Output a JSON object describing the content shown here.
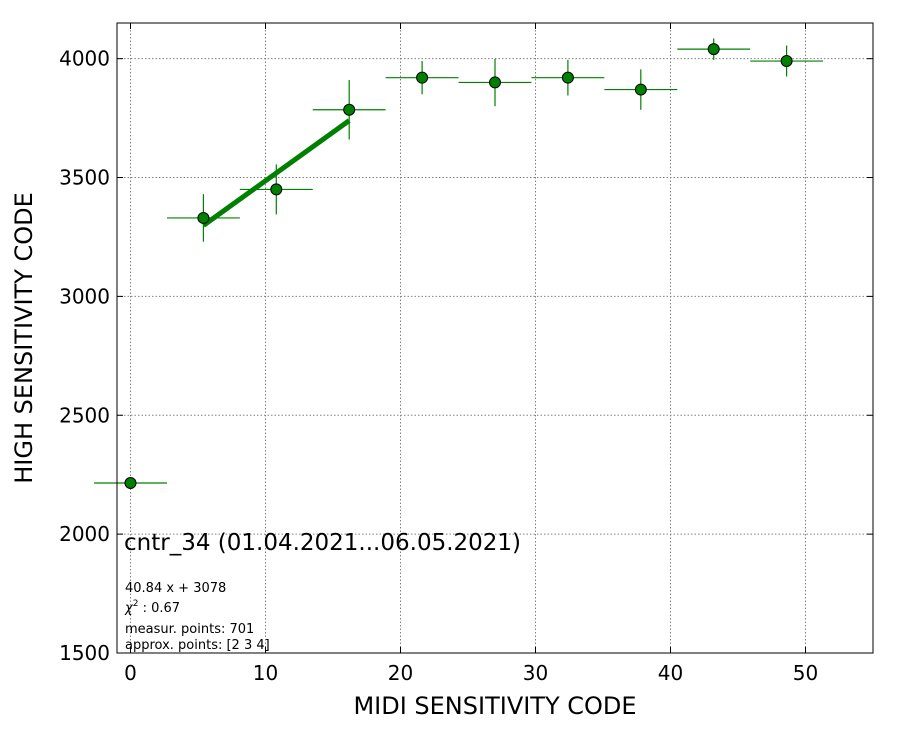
{
  "chart_data": {
    "type": "scatter",
    "xlabel": "MIDI SENSITIVITY CODE",
    "ylabel": "HIGH SENSITIVITY CODE",
    "xlim": [
      -1,
      55
    ],
    "ylim": [
      1500,
      4150
    ],
    "xticks": [
      0,
      10,
      20,
      30,
      40,
      50
    ],
    "yticks": [
      1500,
      2000,
      2500,
      3000,
      3500,
      4000
    ],
    "grid": true,
    "colors": {
      "marker": "#008000",
      "errorbar": "#008000",
      "fit": "#008000",
      "grid": "#808080"
    },
    "points": [
      {
        "x": 0.0,
        "y": 2215,
        "xerr": 2.7,
        "yerr": 0
      },
      {
        "x": 5.4,
        "y": 3330,
        "xerr": 2.7,
        "yerr": 100
      },
      {
        "x": 10.8,
        "y": 3450,
        "xerr": 2.7,
        "yerr": 105
      },
      {
        "x": 16.2,
        "y": 3785,
        "xerr": 2.7,
        "yerr": 125
      },
      {
        "x": 21.6,
        "y": 3920,
        "xerr": 2.7,
        "yerr": 70
      },
      {
        "x": 27.0,
        "y": 3900,
        "xerr": 2.7,
        "yerr": 100
      },
      {
        "x": 32.4,
        "y": 3920,
        "xerr": 2.7,
        "yerr": 75
      },
      {
        "x": 37.8,
        "y": 3870,
        "xerr": 2.7,
        "yerr": 85
      },
      {
        "x": 43.2,
        "y": 4040,
        "xerr": 2.7,
        "yerr": 45
      },
      {
        "x": 48.6,
        "y": 3990,
        "xerr": 2.7,
        "yerr": 65
      }
    ],
    "fit": {
      "slope": 40.84,
      "intercept": 3078,
      "x_range": [
        5.4,
        16.2
      ]
    },
    "annotation": {
      "title": "cntr_34 (01.04.2021...06.05.2021)",
      "equation": "40.84 x + 3078",
      "chi2_label": "χ",
      "chi2_superscript": "2",
      "chi2_value": " : 0.67",
      "measur_points": "measur. points: 701",
      "approx_points": "approx. points: [2 3 4]"
    }
  }
}
